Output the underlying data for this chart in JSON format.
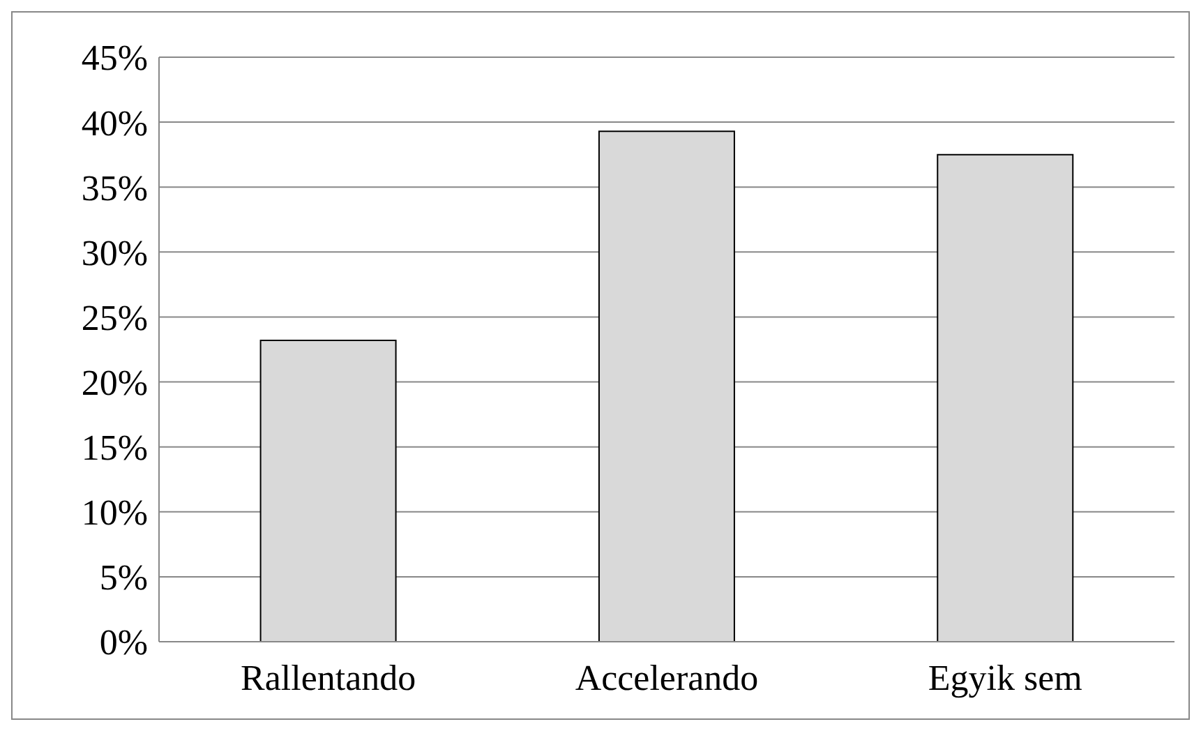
{
  "chart_data": {
    "type": "bar",
    "categories": [
      "Rallentando",
      "Accelerando",
      "Egyik sem"
    ],
    "values": [
      23.2,
      39.3,
      37.5
    ],
    "color": "#d9d9d9",
    "ylim": [
      0,
      45
    ],
    "yticks": [
      {
        "value": 0,
        "label": "0%"
      },
      {
        "value": 5,
        "label": "5%"
      },
      {
        "value": 10,
        "label": "10%"
      },
      {
        "value": 15,
        "label": "15%"
      },
      {
        "value": 20,
        "label": "20%"
      },
      {
        "value": 25,
        "label": "25%"
      },
      {
        "value": 30,
        "label": "30%"
      },
      {
        "value": 35,
        "label": "35%"
      },
      {
        "value": 40,
        "label": "40%"
      },
      {
        "value": 45,
        "label": "45%"
      }
    ],
    "grid": "y",
    "legend": false
  }
}
